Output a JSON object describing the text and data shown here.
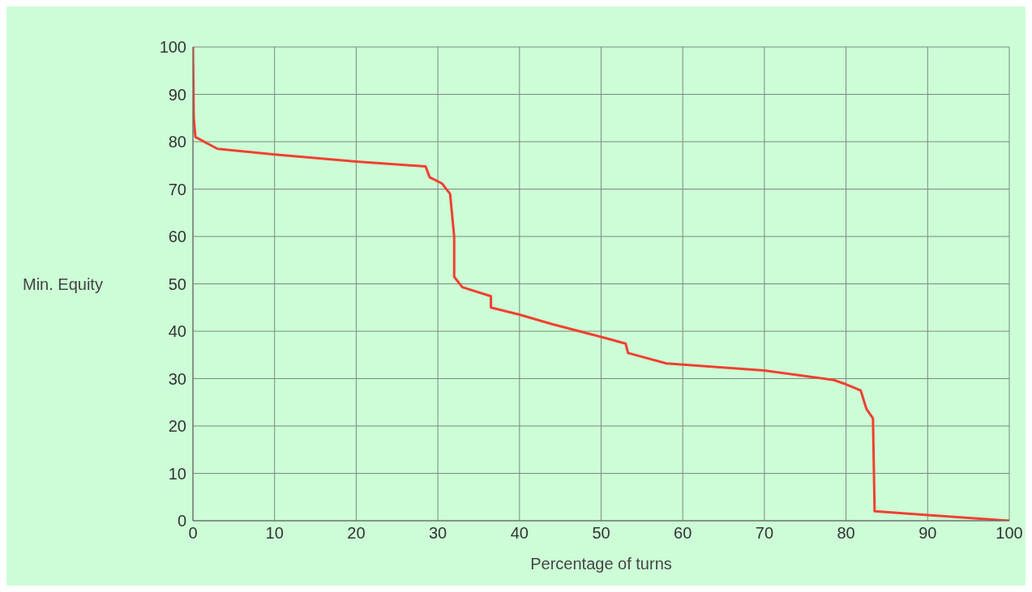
{
  "chart_data": {
    "type": "line",
    "xlabel": "Percentage of turns",
    "ylabel": "Min. Equity",
    "x": [
      0,
      0.1,
      0.3,
      3,
      10,
      20,
      28.5,
      29,
      30.5,
      31.5,
      32,
      32,
      33,
      36.5,
      36.5,
      40,
      44,
      50,
      53,
      53.3,
      58,
      70,
      78.5,
      80,
      81.8,
      82.5,
      83.3,
      83.5,
      90,
      100
    ],
    "series": [
      {
        "color": "#f04030",
        "values": [
          100,
          85,
          81,
          78.5,
          77.3,
          75.8,
          74.8,
          72.5,
          71.2,
          69,
          60,
          51.5,
          49.3,
          47.4,
          45,
          43.5,
          41.5,
          38.8,
          37.4,
          35.4,
          33.2,
          31.7,
          29.7,
          28.8,
          27.5,
          23.6,
          21.6,
          2,
          1.2,
          0
        ]
      }
    ],
    "xlim": [
      0,
      100
    ],
    "xticks": [
      0,
      10,
      20,
      30,
      40,
      50,
      60,
      70,
      80,
      90,
      100
    ],
    "ylim": [
      0,
      100
    ],
    "yticks": [
      0,
      10,
      20,
      30,
      40,
      50,
      60,
      70,
      80,
      90,
      100
    ],
    "grid": true,
    "marker": "none",
    "line_style": "solid"
  }
}
